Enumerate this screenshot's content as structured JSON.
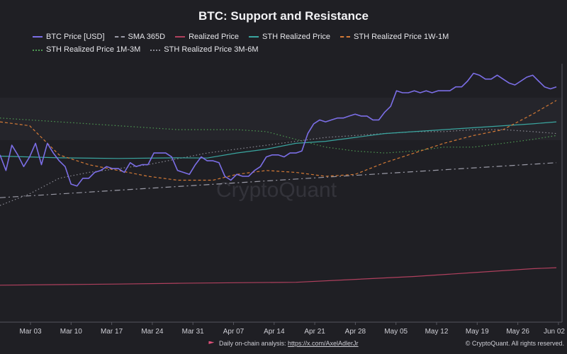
{
  "chart_data": {
    "type": "line",
    "title": "BTC: Support and Resistance",
    "watermark": "CryptoQuant",
    "x_labels": [
      "Mar 03",
      "Mar 10",
      "Mar 17",
      "Mar 24",
      "Mar 31",
      "Apr 07",
      "Apr 14",
      "Apr 21",
      "Apr 28",
      "May 05",
      "May 12",
      "May 19",
      "May 26",
      "Jun 02"
    ],
    "legend_position": "top",
    "grid": false,
    "y_axis_labels_visible": false,
    "series": [
      {
        "name": "BTC Price [USD]",
        "color": "#7b6ee6",
        "style": "solid",
        "x": [
          0,
          1,
          2,
          3,
          4,
          5,
          6,
          7,
          8,
          9,
          10,
          11,
          12,
          13,
          14,
          15,
          16,
          17,
          18,
          19,
          20,
          21,
          22,
          23,
          24,
          25,
          26,
          27,
          28,
          29,
          30,
          31,
          32,
          33,
          34,
          35,
          36,
          37,
          38,
          39,
          40,
          41,
          42,
          43,
          44,
          45,
          46,
          47,
          48,
          49,
          50,
          51,
          52,
          53,
          54,
          55,
          56,
          57,
          58,
          59,
          60,
          61,
          62,
          63,
          64,
          65,
          66,
          67,
          68,
          69,
          70,
          71,
          72,
          73,
          74,
          75,
          76,
          77,
          78,
          79,
          80,
          81,
          82,
          83,
          84,
          85,
          86,
          87,
          88,
          89,
          90,
          91,
          92,
          93,
          94
        ],
        "y": [
          86,
          78,
          91,
          86,
          80,
          85,
          92,
          81,
          92,
          87,
          83,
          80,
          71,
          70,
          74,
          74,
          77,
          78,
          80,
          79,
          79,
          77,
          82,
          80,
          81,
          81,
          87,
          87,
          87,
          85,
          78,
          77,
          76,
          81,
          85,
          83,
          83,
          82,
          75,
          73,
          76,
          75,
          75,
          78,
          80,
          85,
          86,
          86,
          85,
          87,
          87,
          88,
          97,
          102,
          104,
          103,
          104,
          105,
          105,
          106,
          107,
          106,
          106,
          104,
          104,
          108,
          111,
          119,
          118,
          118,
          119,
          118,
          119,
          118,
          119,
          119,
          119,
          121,
          121,
          124,
          128,
          127,
          125,
          125,
          127,
          125,
          123,
          122,
          124,
          126,
          127,
          124,
          121,
          120,
          121
        ]
      },
      {
        "name": "SMA 365D",
        "color": "#9a9aa6",
        "style": "dashdot",
        "x": [
          0,
          94
        ],
        "y": [
          64,
          82
        ]
      },
      {
        "name": "Realized Price",
        "color": "#b0405e",
        "style": "solid",
        "x": [
          0,
          10,
          20,
          30,
          40,
          50,
          60,
          70,
          80,
          90,
          94
        ],
        "y": [
          19,
          19.3,
          19.6,
          20,
          20.3,
          20.5,
          22,
          23.5,
          25.5,
          27.5,
          28
        ]
      },
      {
        "name": "STH Realized Price",
        "color": "#3aa6a0",
        "style": "solid",
        "x": [
          0,
          10,
          20,
          30,
          35,
          40,
          45,
          50,
          55,
          60,
          65,
          70,
          75,
          80,
          85,
          90,
          94
        ],
        "y": [
          85.4,
          84.5,
          84.2,
          84.5,
          84.4,
          87,
          89,
          92,
          93,
          95,
          97,
          98,
          99,
          100,
          101,
          102,
          103
        ]
      },
      {
        "name": "STH Realized Price 1W-1M",
        "color": "#d47a36",
        "style": "dash",
        "x": [
          0,
          5,
          10,
          15,
          20,
          25,
          30,
          33,
          36,
          40,
          45,
          50,
          55,
          60,
          65,
          70,
          75,
          80,
          85,
          90,
          94
        ],
        "y": [
          103,
          101,
          86,
          81,
          78,
          75,
          73,
          73,
          73,
          76,
          78,
          77,
          75,
          76,
          82,
          87,
          92,
          96,
          99,
          107,
          114
        ]
      },
      {
        "name": "STH Realized Price 1M-3M",
        "color": "#4e9a52",
        "style": "dot",
        "x": [
          0,
          10,
          20,
          30,
          35,
          40,
          45,
          50,
          55,
          60,
          65,
          70,
          75,
          80,
          85,
          90,
          94
        ],
        "y": [
          105,
          103,
          101,
          99,
          99,
          99,
          98,
          94,
          90,
          88,
          87,
          88,
          90,
          90,
          92,
          94,
          96
        ]
      },
      {
        "name": "STH Realized Price 3M-6M",
        "color": "#8a8a94",
        "style": "dot",
        "x": [
          0,
          5,
          10,
          15,
          20,
          25,
          30,
          35,
          40,
          45,
          50,
          55,
          60,
          65,
          70,
          75,
          80,
          85,
          90,
          94
        ],
        "y": [
          60,
          66,
          74,
          77,
          79,
          81,
          84,
          87,
          89,
          91,
          93,
          95,
          96,
          97,
          98,
          98,
          99,
          99,
          98,
          97
        ]
      }
    ]
  },
  "footer": {
    "analysis_label": "Daily on-chain analysis:",
    "analysis_link": "https://x.com/AxelAdlerJr",
    "copyright": "© CryptoQuant. All rights reserved."
  }
}
